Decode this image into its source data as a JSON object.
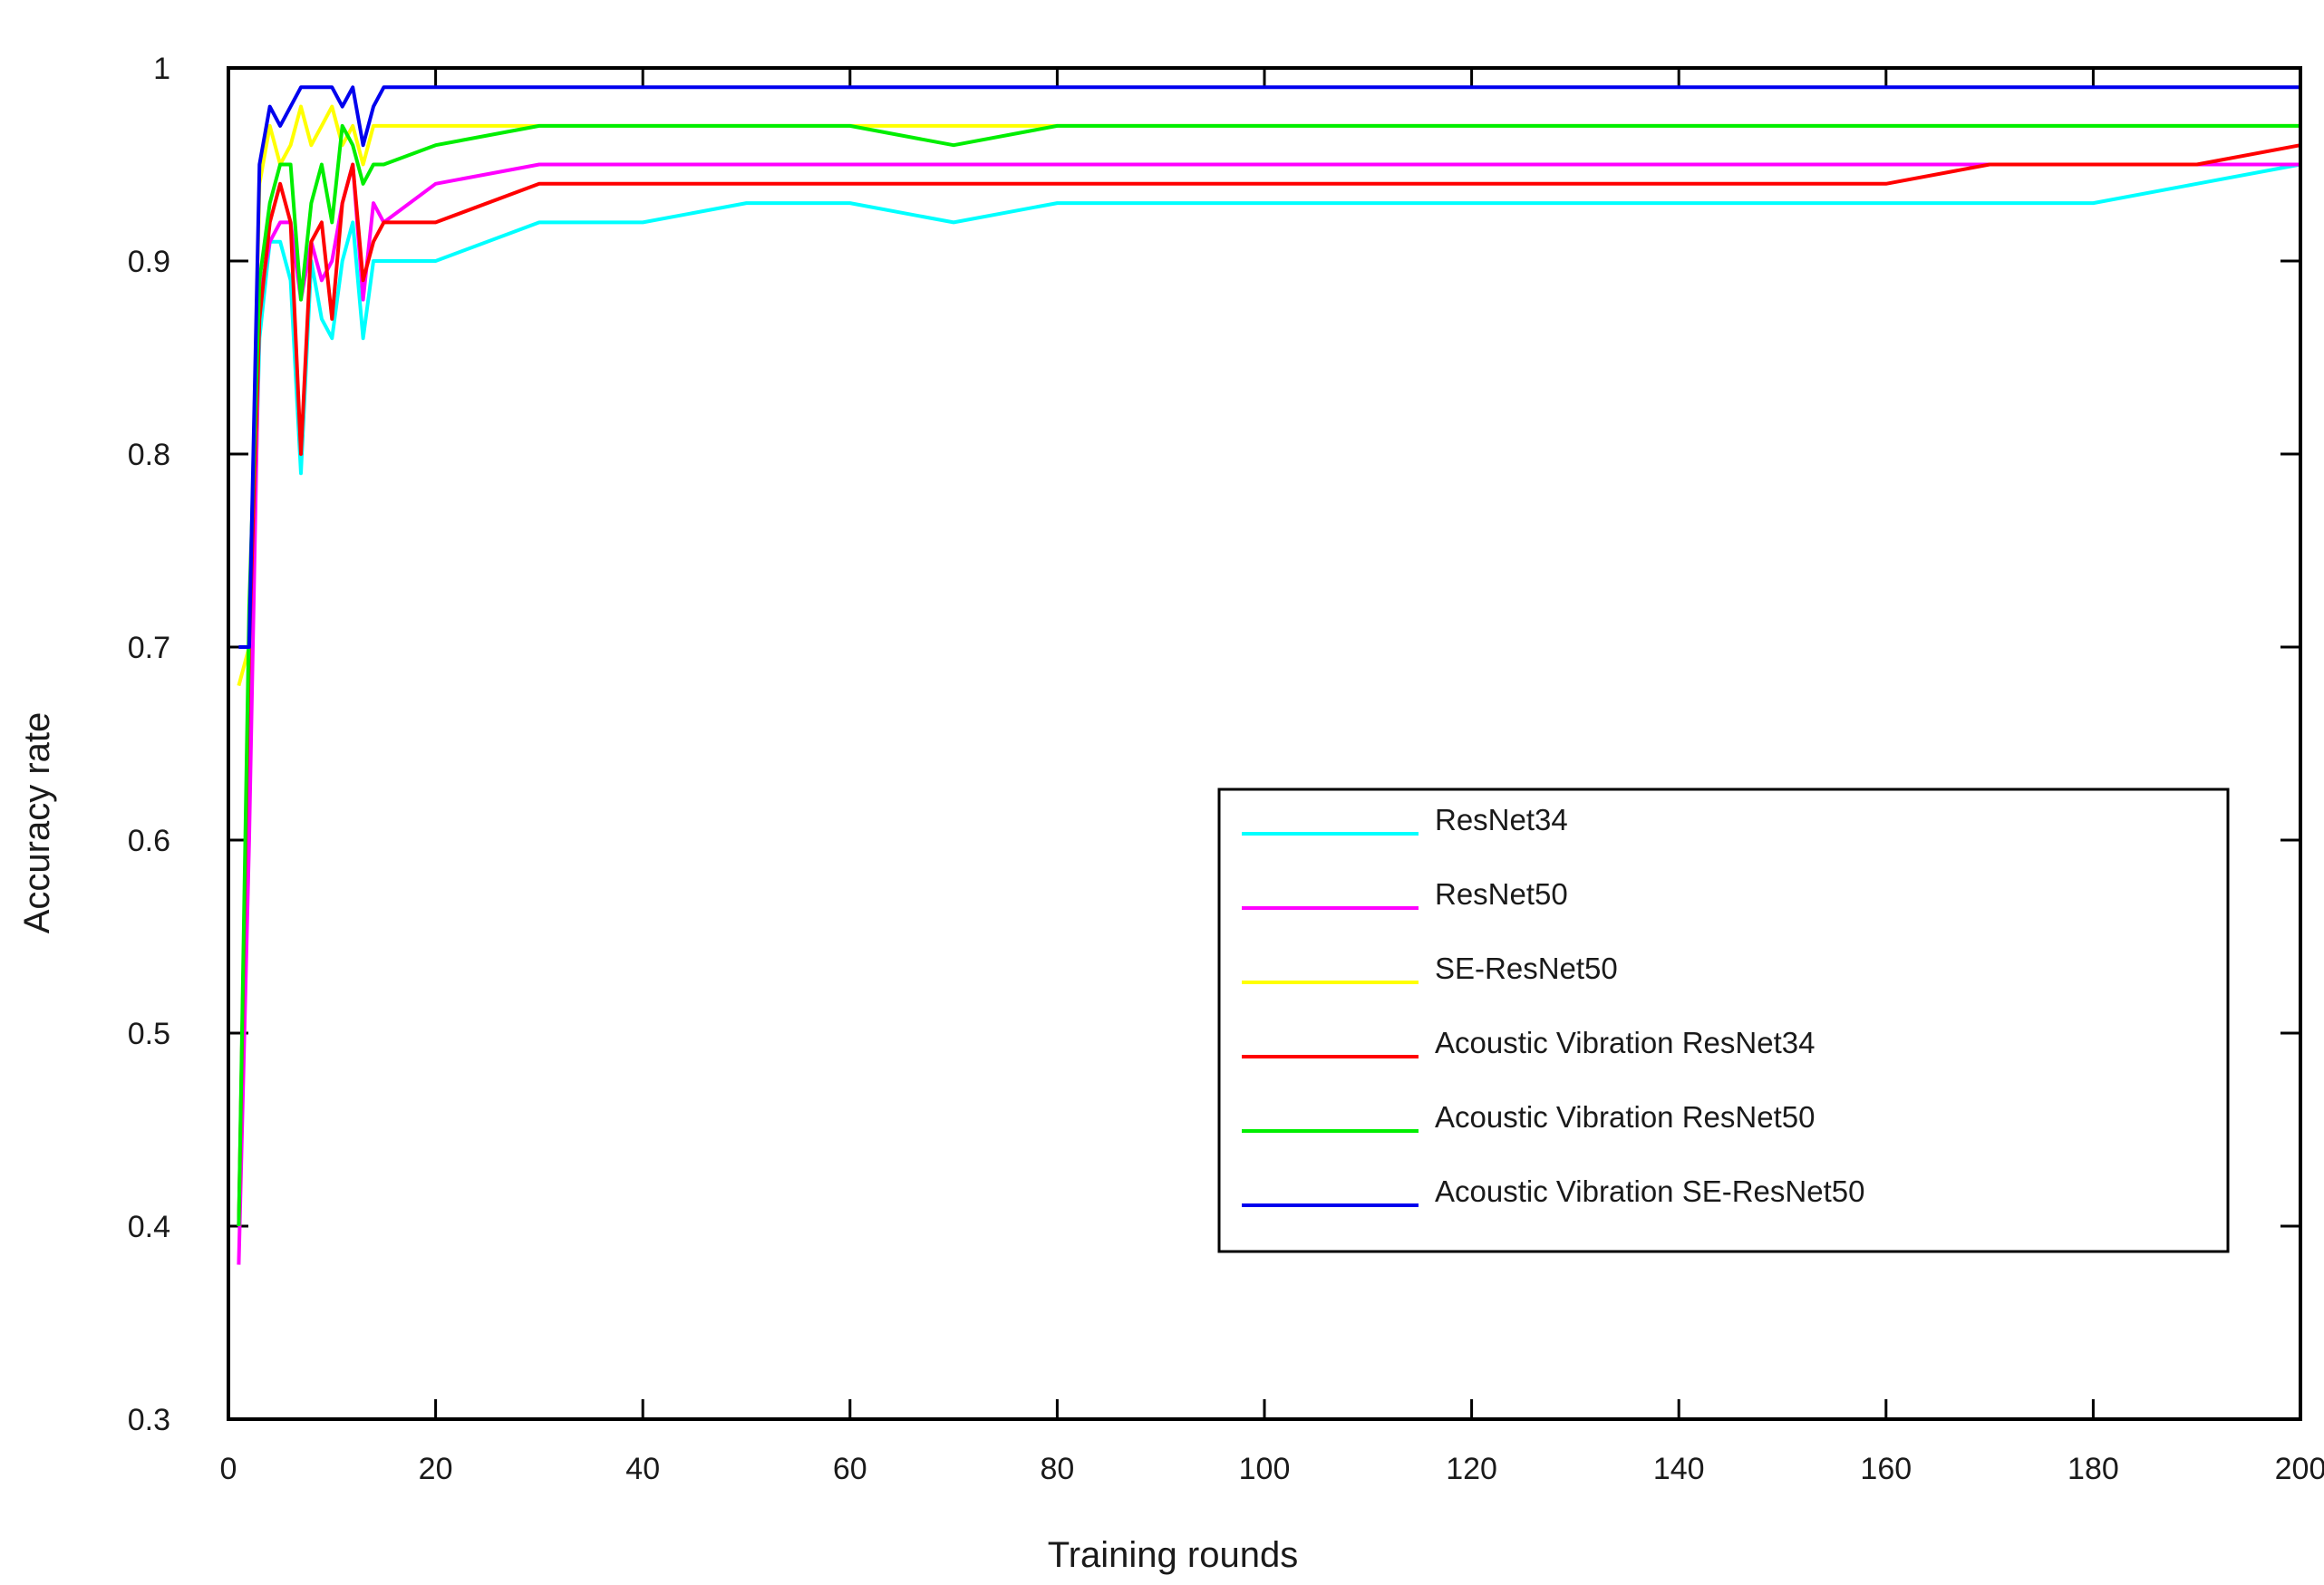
{
  "chart_data": {
    "type": "line",
    "title": "",
    "xlabel": "Training rounds",
    "ylabel": "Accuracy rate",
    "xlim": [
      0,
      200
    ],
    "ylim": [
      0.3,
      1
    ],
    "xticks": [
      0,
      20,
      40,
      60,
      80,
      100,
      120,
      140,
      160,
      180,
      200
    ],
    "yticks": [
      0.3,
      0.4,
      0.5,
      0.6,
      0.7,
      0.8,
      0.9,
      1
    ],
    "ytick_labels": [
      "0.3",
      "0.4",
      "0.5",
      "0.6",
      "0.7",
      "0.8",
      "0.9",
      "1"
    ],
    "grid": false,
    "legend_position": "center-right",
    "series": [
      {
        "name": "ResNet34",
        "color": "#00ffff",
        "x": [
          1,
          2,
          3,
          4,
          5,
          6,
          7,
          8,
          9,
          10,
          11,
          12,
          13,
          14,
          15,
          20,
          30,
          40,
          50,
          60,
          70,
          80,
          90,
          100,
          110,
          120,
          130,
          140,
          150,
          160,
          170,
          180,
          190,
          200
        ],
        "y": [
          0.4,
          0.66,
          0.86,
          0.91,
          0.91,
          0.89,
          0.79,
          0.9,
          0.87,
          0.86,
          0.9,
          0.92,
          0.86,
          0.9,
          0.9,
          0.9,
          0.92,
          0.92,
          0.93,
          0.93,
          0.92,
          0.93,
          0.93,
          0.93,
          0.93,
          0.93,
          0.93,
          0.93,
          0.93,
          0.93,
          0.93,
          0.93,
          0.94,
          0.95
        ]
      },
      {
        "name": "ResNet50",
        "color": "#ff00ff",
        "x": [
          1,
          2,
          3,
          4,
          5,
          6,
          7,
          8,
          9,
          10,
          11,
          12,
          13,
          14,
          15,
          20,
          30,
          40,
          50,
          60,
          70,
          80,
          90,
          100,
          110,
          120,
          130,
          140,
          150,
          160,
          170,
          180,
          190,
          200
        ],
        "y": [
          0.38,
          0.6,
          0.88,
          0.91,
          0.92,
          0.92,
          0.88,
          0.91,
          0.89,
          0.9,
          0.93,
          0.95,
          0.88,
          0.93,
          0.92,
          0.94,
          0.95,
          0.95,
          0.95,
          0.95,
          0.95,
          0.95,
          0.95,
          0.95,
          0.95,
          0.95,
          0.95,
          0.95,
          0.95,
          0.95,
          0.95,
          0.95,
          0.95,
          0.95
        ]
      },
      {
        "name": "SE-ResNet50",
        "color": "#ffff00",
        "x": [
          1,
          2,
          3,
          4,
          5,
          6,
          7,
          8,
          9,
          10,
          11,
          12,
          13,
          14,
          15,
          20,
          30,
          40,
          50,
          60,
          70,
          80,
          90,
          100,
          110,
          120,
          130,
          140,
          150,
          160,
          170,
          180,
          190,
          200
        ],
        "y": [
          0.68,
          0.7,
          0.94,
          0.97,
          0.95,
          0.96,
          0.98,
          0.96,
          0.97,
          0.98,
          0.96,
          0.97,
          0.95,
          0.97,
          0.97,
          0.97,
          0.97,
          0.97,
          0.97,
          0.97,
          0.97,
          0.97,
          0.97,
          0.97,
          0.97,
          0.97,
          0.97,
          0.97,
          0.97,
          0.97,
          0.97,
          0.97,
          0.97,
          0.97
        ]
      },
      {
        "name": "Acoustic Vibration ResNet34",
        "color": "#ff0000",
        "x": [
          1,
          2,
          3,
          4,
          5,
          6,
          7,
          8,
          9,
          10,
          11,
          12,
          13,
          14,
          15,
          20,
          30,
          40,
          50,
          60,
          70,
          80,
          90,
          100,
          110,
          120,
          130,
          140,
          150,
          160,
          170,
          180,
          190,
          200
        ],
        "y": [
          0.4,
          0.7,
          0.87,
          0.92,
          0.94,
          0.92,
          0.8,
          0.91,
          0.92,
          0.87,
          0.93,
          0.95,
          0.89,
          0.91,
          0.92,
          0.92,
          0.94,
          0.94,
          0.94,
          0.94,
          0.94,
          0.94,
          0.94,
          0.94,
          0.94,
          0.94,
          0.94,
          0.94,
          0.94,
          0.94,
          0.95,
          0.95,
          0.95,
          0.96
        ]
      },
      {
        "name": "Acoustic Vibration ResNet50",
        "color": "#00ee00",
        "x": [
          1,
          2,
          3,
          4,
          5,
          6,
          7,
          8,
          9,
          10,
          11,
          12,
          13,
          14,
          15,
          20,
          30,
          40,
          50,
          60,
          70,
          80,
          90,
          100,
          110,
          120,
          130,
          140,
          150,
          160,
          170,
          180,
          190,
          200
        ],
        "y": [
          0.4,
          0.72,
          0.89,
          0.93,
          0.95,
          0.95,
          0.88,
          0.93,
          0.95,
          0.92,
          0.97,
          0.96,
          0.94,
          0.95,
          0.95,
          0.96,
          0.97,
          0.97,
          0.97,
          0.97,
          0.96,
          0.97,
          0.97,
          0.97,
          0.97,
          0.97,
          0.97,
          0.97,
          0.97,
          0.97,
          0.97,
          0.97,
          0.97,
          0.97
        ]
      },
      {
        "name": "Acoustic Vibration SE-ResNet50",
        "color": "#0000ee",
        "x": [
          1,
          2,
          3,
          4,
          5,
          6,
          7,
          8,
          9,
          10,
          11,
          12,
          13,
          14,
          15,
          20,
          30,
          40,
          50,
          60,
          70,
          80,
          90,
          100,
          110,
          120,
          130,
          140,
          150,
          160,
          170,
          180,
          190,
          200
        ],
        "y": [
          0.7,
          0.7,
          0.95,
          0.98,
          0.97,
          0.98,
          0.99,
          0.99,
          0.99,
          0.99,
          0.98,
          0.99,
          0.96,
          0.98,
          0.99,
          0.99,
          0.99,
          0.99,
          0.99,
          0.99,
          0.99,
          0.99,
          0.99,
          0.99,
          0.99,
          0.99,
          0.99,
          0.99,
          0.99,
          0.99,
          0.99,
          0.99,
          0.99,
          0.99
        ]
      }
    ]
  }
}
